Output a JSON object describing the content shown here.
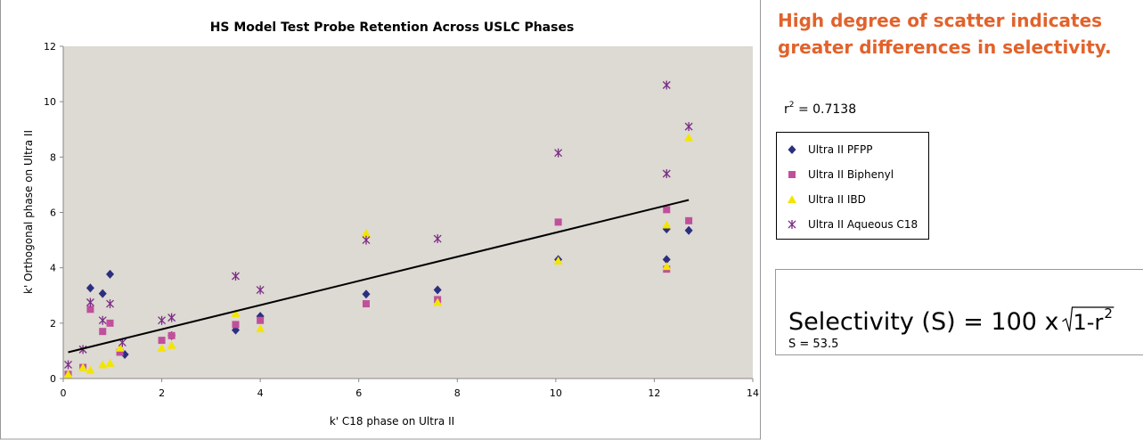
{
  "chart_data": {
    "type": "scatter",
    "title": "HS Model Test Probe Retention Across USLC Phases",
    "xlabel": "k' C18 phase on Ultra II",
    "ylabel": "k' Orthogonal phase on Ultra II",
    "xlim": [
      0,
      14
    ],
    "xticks": [
      0,
      2,
      4,
      6,
      8,
      10,
      12,
      14
    ],
    "ylim": [
      0,
      12
    ],
    "yticks": [
      0,
      2,
      4,
      6,
      8,
      10,
      12
    ],
    "series": [
      {
        "name": "Ultra II PFPP",
        "color": "#2b2f7f",
        "marker": "diamond",
        "x": [
          0.55,
          0.8,
          0.95,
          1.15,
          1.25,
          2.2,
          3.5,
          4.0,
          6.15,
          7.6,
          10.05,
          12.25,
          12.25,
          12.7
        ],
        "values": [
          3.27,
          3.07,
          3.77,
          1.0,
          0.87,
          1.55,
          1.75,
          2.25,
          3.05,
          3.2,
          4.3,
          5.4,
          4.3,
          5.35
        ]
      },
      {
        "name": "Ultra II Biphenyl",
        "color": "#c0509b",
        "marker": "square",
        "x": [
          0.1,
          0.4,
          0.55,
          0.8,
          0.95,
          1.15,
          2.0,
          2.2,
          3.5,
          4.0,
          6.15,
          7.6,
          10.05,
          12.25,
          12.25,
          12.7
        ],
        "values": [
          0.15,
          0.4,
          2.5,
          1.7,
          2.0,
          0.95,
          1.38,
          1.55,
          1.95,
          2.1,
          2.7,
          2.85,
          5.65,
          6.1,
          3.95,
          5.7
        ]
      },
      {
        "name": "Ultra II IBD",
        "color": "#f2e600",
        "marker": "triangle",
        "x": [
          0.1,
          0.4,
          0.55,
          0.8,
          0.95,
          1.15,
          2.0,
          2.2,
          3.5,
          4.0,
          6.15,
          7.6,
          10.05,
          12.25,
          12.25,
          12.7
        ],
        "values": [
          0.15,
          0.4,
          0.3,
          0.5,
          0.55,
          1.1,
          1.1,
          1.2,
          2.35,
          1.8,
          5.25,
          2.75,
          4.25,
          5.55,
          4.05,
          8.7
        ]
      },
      {
        "name": "Ultra II Aqueous C18",
        "color": "#7b2d85",
        "marker": "star",
        "x": [
          0.1,
          0.4,
          0.55,
          0.8,
          0.95,
          1.2,
          2.0,
          2.2,
          3.5,
          4.0,
          6.15,
          7.6,
          10.05,
          12.25,
          12.25,
          12.7
        ],
        "values": [
          0.5,
          1.05,
          2.75,
          2.1,
          2.7,
          1.3,
          2.1,
          2.2,
          3.7,
          3.2,
          5.0,
          5.05,
          8.15,
          10.6,
          7.4,
          9.1
        ]
      }
    ],
    "trendline": {
      "x": [
        0.1,
        12.7
      ],
      "y": [
        0.95,
        6.45
      ],
      "color": "#000000"
    },
    "annotation": [
      "High degree of scatter indicates",
      "greater differences in selectivity."
    ],
    "r2": {
      "base": "r",
      "sup": "2",
      "rest": " = 0.7138"
    },
    "formula": {
      "prefix": "Selectivity (S) = 100 x",
      "radicand": "1-r",
      "sup": "2",
      "result": "S = 53.5"
    }
  }
}
